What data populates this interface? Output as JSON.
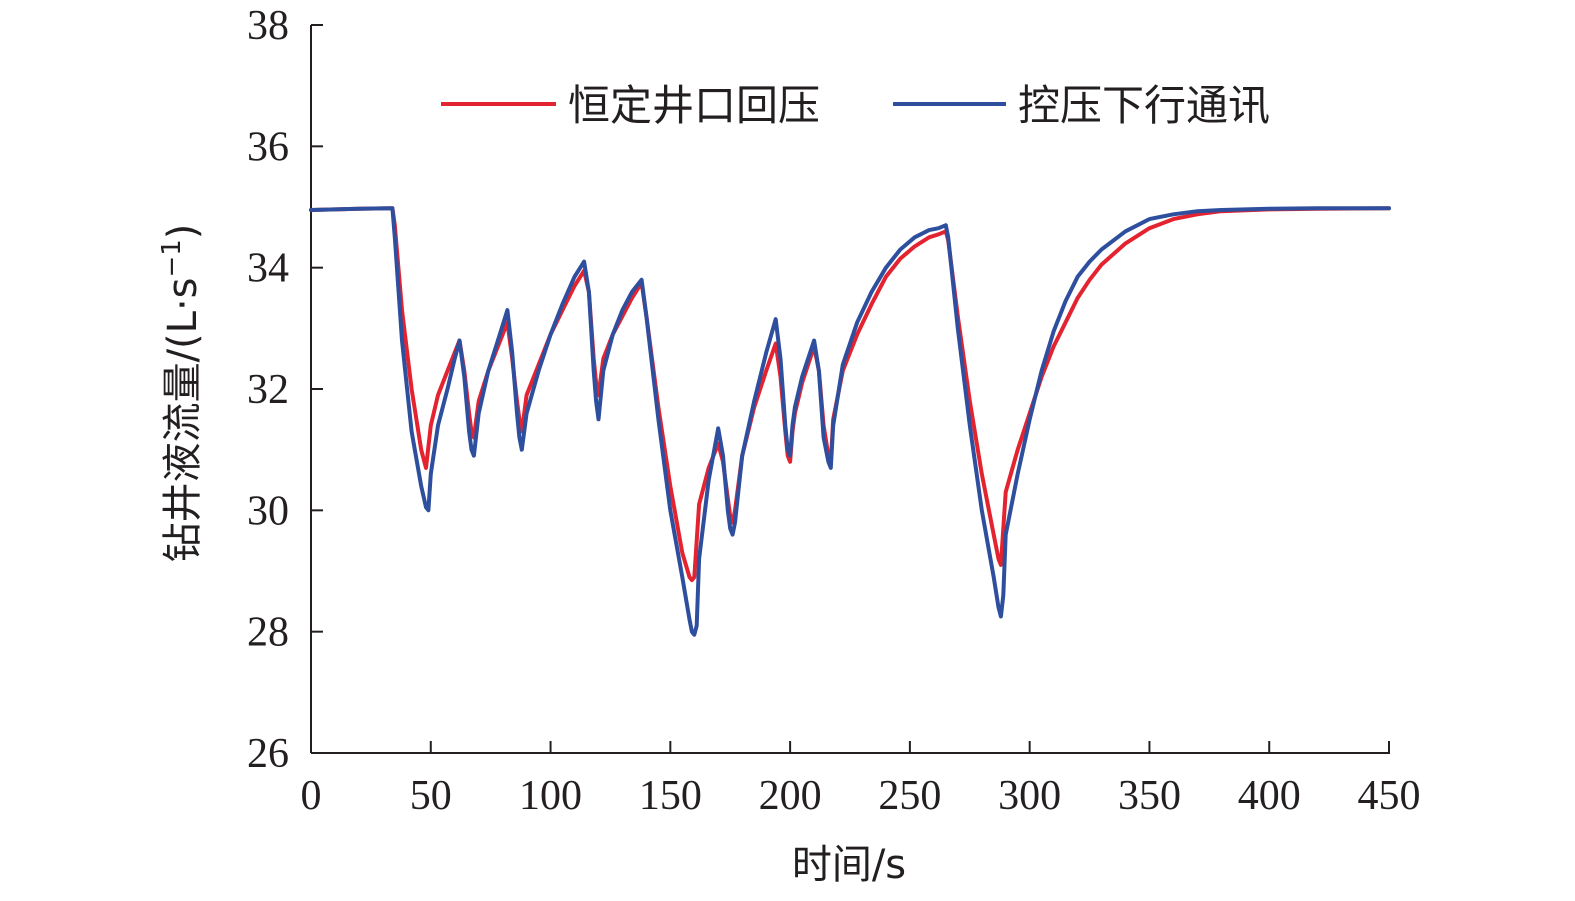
{
  "chart_data": {
    "type": "line",
    "xlabel": "时间/s",
    "ylabel": "钻井液流量/(L·s",
    "ylabel_sup": "−1",
    "ylabel_close": ")",
    "xlim": [
      0,
      450
    ],
    "ylim": [
      26,
      38
    ],
    "xticks": [
      0,
      50,
      100,
      150,
      200,
      250,
      300,
      350,
      400,
      450
    ],
    "yticks": [
      26,
      28,
      30,
      32,
      34,
      36,
      38
    ],
    "grid": false,
    "legend_position": "top",
    "series": [
      {
        "name": "恒定井口回压",
        "color": "#e32430",
        "x": [
          0,
          20,
          34,
          35,
          38,
          42,
          46,
          48,
          50,
          53,
          57,
          60,
          62,
          64,
          66,
          67,
          68,
          70,
          74,
          78,
          82,
          84,
          86,
          87,
          88,
          90,
          95,
          100,
          105,
          110,
          114,
          116,
          118,
          119,
          120,
          122,
          126,
          130,
          134,
          138,
          140,
          145,
          150,
          155,
          158,
          159,
          160,
          161,
          162,
          166,
          170,
          172,
          174,
          175,
          176,
          177,
          180,
          185,
          190,
          194,
          196,
          198,
          199,
          200,
          201,
          202,
          205,
          210,
          212,
          214,
          216,
          217,
          218,
          222,
          228,
          234,
          240,
          246,
          252,
          258,
          262,
          265,
          266,
          270,
          275,
          280,
          285,
          287,
          288,
          289,
          290,
          295,
          300,
          305,
          310,
          315,
          320,
          325,
          330,
          340,
          350,
          360,
          370,
          380,
          400,
          420,
          450
        ],
        "y": [
          34.95,
          34.97,
          34.98,
          34.7,
          33.3,
          32.0,
          31.0,
          30.7,
          31.4,
          31.9,
          32.3,
          32.6,
          32.8,
          32.3,
          31.6,
          31.3,
          31.2,
          31.8,
          32.3,
          32.7,
          33.1,
          32.5,
          31.8,
          31.5,
          31.3,
          31.9,
          32.4,
          32.9,
          33.3,
          33.7,
          33.95,
          33.6,
          32.5,
          32.1,
          31.9,
          32.5,
          32.9,
          33.2,
          33.5,
          33.75,
          33.2,
          31.7,
          30.4,
          29.3,
          28.9,
          28.85,
          28.9,
          29.5,
          30.1,
          30.7,
          31.1,
          30.8,
          30.2,
          29.9,
          29.8,
          30.0,
          30.9,
          31.7,
          32.3,
          32.75,
          32.2,
          31.3,
          30.9,
          30.8,
          31.3,
          31.6,
          32.1,
          32.7,
          32.3,
          31.4,
          30.9,
          30.8,
          31.5,
          32.3,
          32.9,
          33.4,
          33.85,
          34.15,
          34.35,
          34.5,
          34.55,
          34.6,
          34.45,
          33.2,
          31.8,
          30.6,
          29.6,
          29.2,
          29.1,
          29.7,
          30.3,
          31.0,
          31.6,
          32.2,
          32.7,
          33.1,
          33.5,
          33.8,
          34.05,
          34.4,
          34.65,
          34.8,
          34.88,
          34.93,
          34.96,
          34.97,
          34.98
        ]
      },
      {
        "name": "控压下行通讯",
        "color": "#2e4e9e",
        "x": [
          0,
          20,
          34,
          35,
          38,
          42,
          46,
          48,
          49,
          50,
          53,
          57,
          60,
          62,
          64,
          66,
          67,
          68,
          70,
          74,
          78,
          82,
          84,
          86,
          87,
          88,
          90,
          95,
          100,
          105,
          110,
          114,
          116,
          118,
          119,
          120,
          122,
          126,
          130,
          134,
          138,
          140,
          145,
          150,
          155,
          158,
          159,
          160,
          161,
          162,
          166,
          170,
          172,
          174,
          175,
          176,
          177,
          180,
          185,
          190,
          194,
          196,
          198,
          199,
          200,
          201,
          202,
          205,
          210,
          212,
          214,
          216,
          217,
          218,
          222,
          228,
          234,
          240,
          246,
          252,
          258,
          262,
          265,
          266,
          270,
          275,
          280,
          285,
          287,
          288,
          289,
          290,
          295,
          300,
          305,
          310,
          315,
          320,
          325,
          330,
          340,
          350,
          360,
          370,
          380,
          400,
          420,
          450
        ],
        "y": [
          34.95,
          34.97,
          34.98,
          34.5,
          32.8,
          31.3,
          30.4,
          30.05,
          30.0,
          30.6,
          31.4,
          32.0,
          32.5,
          32.8,
          32.2,
          31.3,
          31.0,
          30.9,
          31.6,
          32.3,
          32.8,
          33.3,
          32.6,
          31.6,
          31.2,
          31.0,
          31.6,
          32.3,
          32.9,
          33.4,
          33.85,
          34.1,
          33.6,
          32.3,
          31.8,
          31.5,
          32.3,
          32.9,
          33.3,
          33.6,
          33.8,
          33.2,
          31.5,
          30.0,
          28.9,
          28.2,
          28.0,
          27.95,
          28.1,
          29.2,
          30.5,
          31.35,
          30.9,
          30.0,
          29.7,
          29.6,
          29.8,
          30.9,
          31.8,
          32.6,
          33.15,
          32.5,
          31.4,
          31.0,
          30.9,
          31.4,
          31.7,
          32.2,
          32.8,
          32.3,
          31.2,
          30.8,
          30.7,
          31.4,
          32.4,
          33.1,
          33.6,
          34.0,
          34.3,
          34.5,
          34.62,
          34.65,
          34.7,
          34.5,
          33.0,
          31.4,
          30.0,
          28.9,
          28.4,
          28.25,
          28.6,
          29.6,
          30.6,
          31.5,
          32.3,
          32.95,
          33.45,
          33.85,
          34.1,
          34.3,
          34.6,
          34.8,
          34.88,
          34.93,
          34.95,
          34.97,
          34.98,
          34.98
        ]
      }
    ]
  }
}
